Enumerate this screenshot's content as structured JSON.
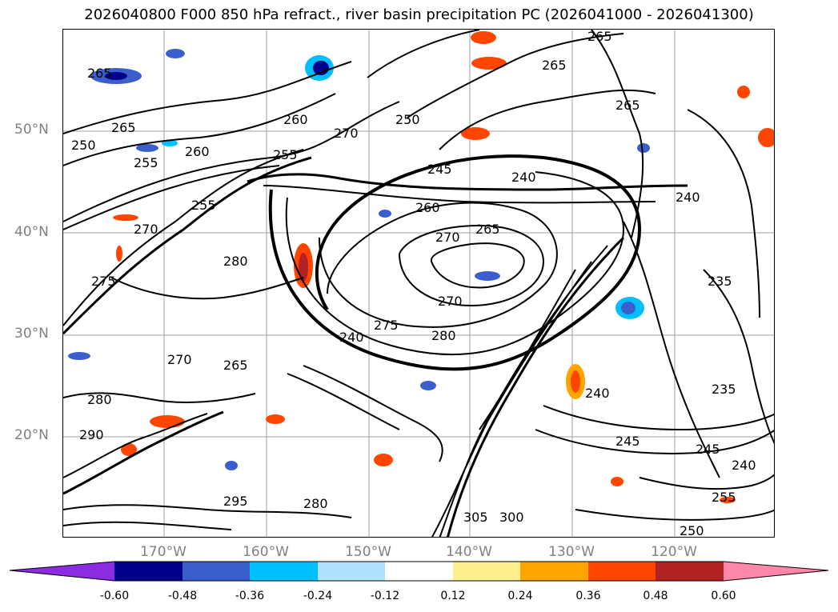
{
  "title": "2026040800 F000 850 hPa refract., river basin precipitation PC (2026041000 - 2026041300)",
  "latitude_labels": [
    "50°N",
    "40°N",
    "30°N",
    "20°N"
  ],
  "longitude_labels": [
    "170°W",
    "160°W",
    "150°W",
    "140°W",
    "130°W",
    "120°W"
  ],
  "contour_labels": [
    "265",
    "265",
    "265",
    "260",
    "265",
    "250",
    "255",
    "260",
    "250",
    "255",
    "270",
    "265",
    "245",
    "240",
    "260",
    "270",
    "265",
    "255",
    "270",
    "280",
    "275",
    "270",
    "275",
    "240",
    "280",
    "265",
    "270",
    "280",
    "290",
    "295",
    "280",
    "305",
    "300",
    "240",
    "245",
    "235",
    "245",
    "240",
    "255",
    "250",
    "235",
    "240"
  ],
  "colorbar": {
    "tick_labels": [
      "-0.60",
      "-0.48",
      "-0.36",
      "-0.24",
      "-0.12",
      "0.12",
      "0.24",
      "0.36",
      "0.48",
      "0.60"
    ],
    "colors": [
      "#8b2be2",
      "#00008b",
      "#3a5fcd",
      "#00bfff",
      "#b0e2ff",
      "#ffffff",
      "#fff08f",
      "#ffa500",
      "#ff4500",
      "#b22222",
      "#ff88aa"
    ]
  }
}
